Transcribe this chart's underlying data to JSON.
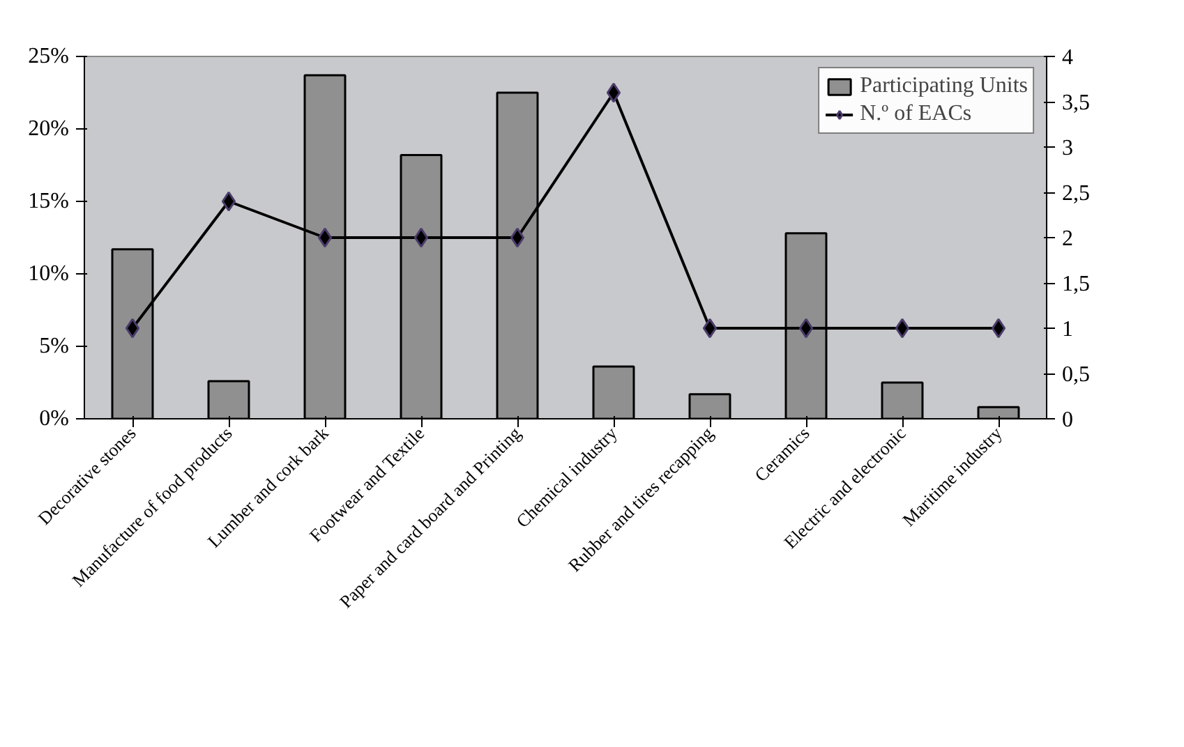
{
  "chart_data": {
    "type": "bar",
    "categories": [
      "Decorative stones",
      "Manufacture of food products",
      "Lumber and cork bark",
      "Footwear and Textile",
      "Paper and card board and Printing",
      "Chemical industry",
      "Rubber and tires recapping",
      "Ceramics",
      "Electric and electronic",
      "Maritime industry"
    ],
    "series": [
      {
        "name": "Participating Units",
        "color": "#909090",
        "values": [
          11.7,
          2.6,
          23.7,
          18.2,
          22.5,
          3.6,
          1.7,
          12.8,
          2.5,
          0.8
        ]
      },
      {
        "name": "N.º of EACs",
        "type": "line",
        "axis": "y2",
        "color": "#000000",
        "marker": "diamond",
        "values": [
          1,
          2.4,
          2,
          2,
          2,
          3.6,
          1,
          1,
          1,
          1
        ]
      }
    ],
    "ylim": [
      0,
      25
    ],
    "yticks": [
      {
        "value": 0,
        "label": "0%"
      },
      {
        "value": 5,
        "label": "5%"
      },
      {
        "value": 10,
        "label": "10%"
      },
      {
        "value": 15,
        "label": "15%"
      },
      {
        "value": 20,
        "label": "20%"
      },
      {
        "value": 25,
        "label": "25%"
      }
    ],
    "y2lim": [
      0,
      4
    ],
    "y2ticks": [
      0,
      {
        "value": 0.5,
        "label": "0,5"
      },
      1,
      {
        "value": 1.5,
        "label": "1,5"
      },
      2,
      {
        "value": 2.5,
        "label": "2,5"
      },
      3,
      {
        "value": 3.5,
        "label": "3,5"
      },
      4
    ],
    "grid": false,
    "legend": "top right"
  }
}
